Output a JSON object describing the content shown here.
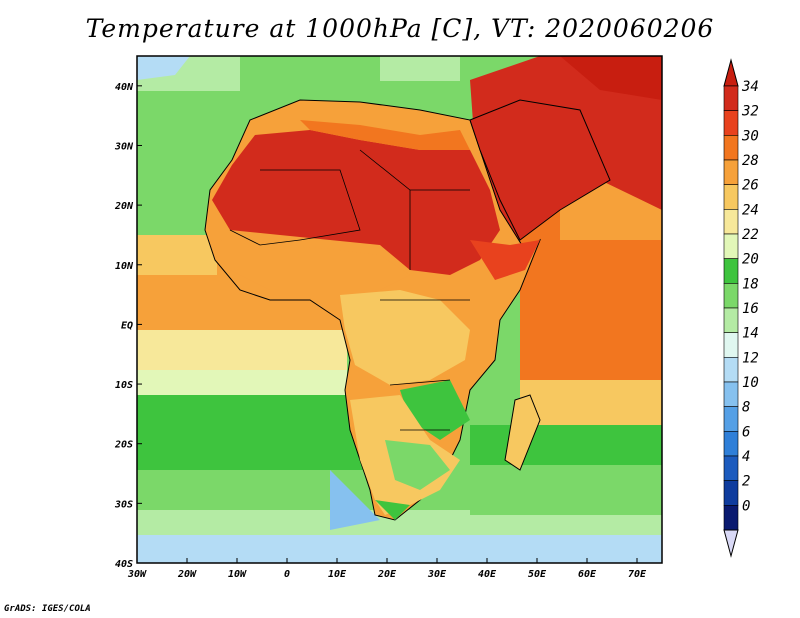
{
  "title": "Temperature at 1000hPa [C], VT: 2020060206",
  "credit": "GrADS: IGES/COLA",
  "map": {
    "lon_range": [
      -30,
      75
    ],
    "lat_range": [
      -40,
      45
    ],
    "lon_ticks": [
      "30W",
      "20W",
      "10W",
      "0",
      "10E",
      "20E",
      "30E",
      "40E",
      "50E",
      "60E",
      "70E"
    ],
    "lat_ticks": [
      "40N",
      "30N",
      "20N",
      "10N",
      "EQ",
      "10S",
      "20S",
      "30S",
      "40S"
    ]
  },
  "colorbar": {
    "labels": [
      "34",
      "32",
      "30",
      "28",
      "26",
      "24",
      "22",
      "20",
      "18",
      "16",
      "14",
      "12",
      "10",
      "8",
      "6",
      "4",
      "2",
      "0"
    ],
    "colors": [
      "#d22b1c",
      "#e8421e",
      "#f2761f",
      "#f6a13a",
      "#f7c860",
      "#f7e89a",
      "#e2f7b8",
      "#3ec43e",
      "#7bd869",
      "#b4eba4",
      "#e0f7f0",
      "#b4dcf5",
      "#86c1ef",
      "#55a0e6",
      "#2f7fd8",
      "#1c5bbe",
      "#0f3c9e",
      "#0a1a70"
    ],
    "top_color": "#c81e10",
    "bottom_color": "#d9d9f6"
  }
}
